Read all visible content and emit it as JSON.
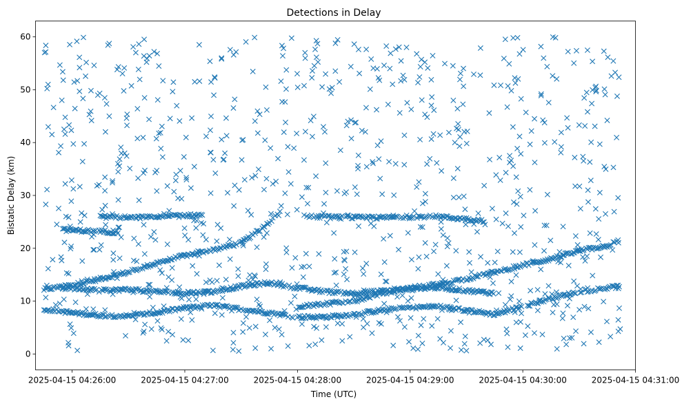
{
  "chart_data": {
    "type": "scatter",
    "title": "Detections in Delay",
    "xlabel": "Time (UTC)",
    "ylabel": "Bistatic Delay (km)",
    "x_unit": "seconds after 2025-04-15 04:26:00",
    "xlim_seconds": [
      -19.5,
      300
    ],
    "ylim": [
      -3,
      63
    ],
    "x_ticks": [
      {
        "t": 0,
        "label": "2025-04-15 04:26:00"
      },
      {
        "t": 60,
        "label": "2025-04-15 04:27:00"
      },
      {
        "t": 120,
        "label": "2025-04-15 04:28:00"
      },
      {
        "t": 180,
        "label": "2025-04-15 04:29:00"
      },
      {
        "t": 240,
        "label": "2025-04-15 04:30:00"
      },
      {
        "t": 300,
        "label": "2025-04-15 04:31:00"
      }
    ],
    "y_ticks": [
      0,
      10,
      20,
      30,
      40,
      50,
      60
    ],
    "marker": "x",
    "grid": false,
    "color": "#1f77b4",
    "series": [
      {
        "description_key": "tracks",
        "tracks": [
          {
            "points": [
              [
                -15,
                12.2
              ],
              [
                0,
                13.0
              ],
              [
                15,
                14.2
              ],
              [
                30,
                15.5
              ],
              [
                45,
                17.2
              ],
              [
                60,
                18.6
              ],
              [
                75,
                19.7
              ],
              [
                90,
                21.0
              ],
              [
                100,
                23.5
              ],
              [
                110,
                26.5
              ],
              [
                112,
                28.5
              ]
            ]
          },
          {
            "points": [
              [
                -15,
                8.5
              ],
              [
                0,
                7.8
              ],
              [
                15,
                7.3
              ],
              [
                30,
                7.2
              ],
              [
                45,
                7.8
              ],
              [
                60,
                8.7
              ],
              [
                75,
                9.2
              ],
              [
                90,
                8.5
              ],
              [
                105,
                7.8
              ],
              [
                120,
                7.0
              ],
              [
                135,
                7.0
              ],
              [
                150,
                7.5
              ],
              [
                165,
                8.3
              ],
              [
                180,
                8.8
              ],
              [
                195,
                9.0
              ],
              [
                210,
                8.3
              ],
              [
                225,
                7.5
              ],
              [
                240,
                9.0
              ],
              [
                255,
                10.5
              ],
              [
                270,
                11.8
              ],
              [
                285,
                12.5
              ],
              [
                292,
                12.8
              ]
            ]
          },
          {
            "points": [
              [
                -5,
                12.5
              ],
              [
                15,
                12.0
              ],
              [
                30,
                12.2
              ],
              [
                45,
                11.8
              ],
              [
                60,
                11.5
              ],
              [
                75,
                11.8
              ],
              [
                90,
                12.8
              ],
              [
                105,
                13.5
              ],
              [
                120,
                12.5
              ],
              [
                135,
                11.8
              ],
              [
                150,
                11.5
              ],
              [
                165,
                11.9
              ],
              [
                180,
                12.2
              ],
              [
                195,
                12.6
              ],
              [
                210,
                12.0
              ],
              [
                225,
                11.5
              ]
            ]
          },
          {
            "points": [
              [
                120,
                9.0
              ],
              [
                150,
                10.0
              ],
              [
                165,
                11.5
              ],
              [
                180,
                12.5
              ],
              [
                195,
                13.2
              ],
              [
                210,
                14.2
              ],
              [
                225,
                15.5
              ],
              [
                240,
                16.8
              ],
              [
                255,
                18.0
              ],
              [
                270,
                19.5
              ],
              [
                285,
                20.5
              ],
              [
                292,
                21.5
              ]
            ]
          },
          {
            "points": [
              [
                15,
                26.0
              ],
              [
                30,
                25.8
              ],
              [
                45,
                25.9
              ],
              [
                60,
                26.2
              ],
              [
                70,
                26.3
              ]
            ]
          },
          {
            "points": [
              [
                125,
                26.0
              ],
              [
                150,
                25.8
              ],
              [
                165,
                25.8
              ],
              [
                180,
                26.0
              ],
              [
                195,
                26.0
              ],
              [
                210,
                25.5
              ],
              [
                220,
                25.2
              ]
            ]
          },
          {
            "points": [
              [
                -5,
                23.5
              ],
              [
                15,
                23.2
              ],
              [
                25,
                23.0
              ]
            ]
          }
        ]
      }
    ]
  }
}
